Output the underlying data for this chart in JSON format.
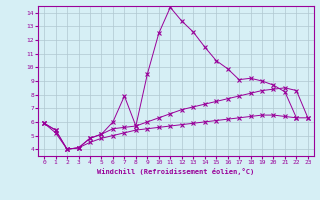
{
  "xlabel": "Windchill (Refroidissement éolien,°C)",
  "background_color": "#d6eff5",
  "line_color": "#990099",
  "grid_color": "#b0c8d0",
  "xlim": [
    -0.5,
    23.5
  ],
  "ylim": [
    3.5,
    14.5
  ],
  "xticks": [
    0,
    1,
    2,
    3,
    4,
    5,
    6,
    7,
    8,
    9,
    10,
    11,
    12,
    13,
    14,
    15,
    16,
    17,
    18,
    19,
    20,
    21,
    22,
    23
  ],
  "yticks": [
    4,
    5,
    6,
    7,
    8,
    9,
    10,
    11,
    12,
    13,
    14
  ],
  "series1_x": [
    0,
    1,
    2,
    3,
    4,
    5,
    6,
    7,
    8,
    9,
    10,
    11,
    12,
    13,
    14,
    15,
    16,
    17,
    18,
    19,
    20,
    21,
    22
  ],
  "series1_y": [
    5.9,
    5.4,
    4.0,
    4.1,
    4.8,
    5.1,
    6.0,
    7.9,
    5.7,
    9.5,
    12.5,
    14.4,
    13.4,
    12.6,
    11.5,
    10.5,
    9.9,
    9.1,
    9.2,
    9.0,
    8.7,
    8.2,
    6.3
  ],
  "series2_x": [
    0,
    1,
    2,
    3,
    4,
    5,
    6,
    7,
    8,
    9,
    10,
    11,
    12,
    13,
    14,
    15,
    16,
    17,
    18,
    19,
    20,
    21,
    22,
    23
  ],
  "series2_y": [
    5.9,
    5.4,
    4.0,
    4.1,
    4.8,
    5.1,
    5.5,
    5.6,
    5.7,
    6.0,
    6.3,
    6.6,
    6.9,
    7.1,
    7.3,
    7.5,
    7.7,
    7.9,
    8.1,
    8.3,
    8.4,
    8.5,
    8.3,
    6.3
  ],
  "series3_x": [
    0,
    1,
    2,
    3,
    4,
    5,
    6,
    7,
    8,
    9,
    10,
    11,
    12,
    13,
    14,
    15,
    16,
    17,
    18,
    19,
    20,
    21,
    22,
    23
  ],
  "series3_y": [
    5.9,
    5.2,
    4.0,
    4.1,
    4.5,
    4.8,
    5.0,
    5.2,
    5.4,
    5.5,
    5.6,
    5.7,
    5.8,
    5.9,
    6.0,
    6.1,
    6.2,
    6.3,
    6.4,
    6.5,
    6.5,
    6.4,
    6.3,
    6.3
  ]
}
